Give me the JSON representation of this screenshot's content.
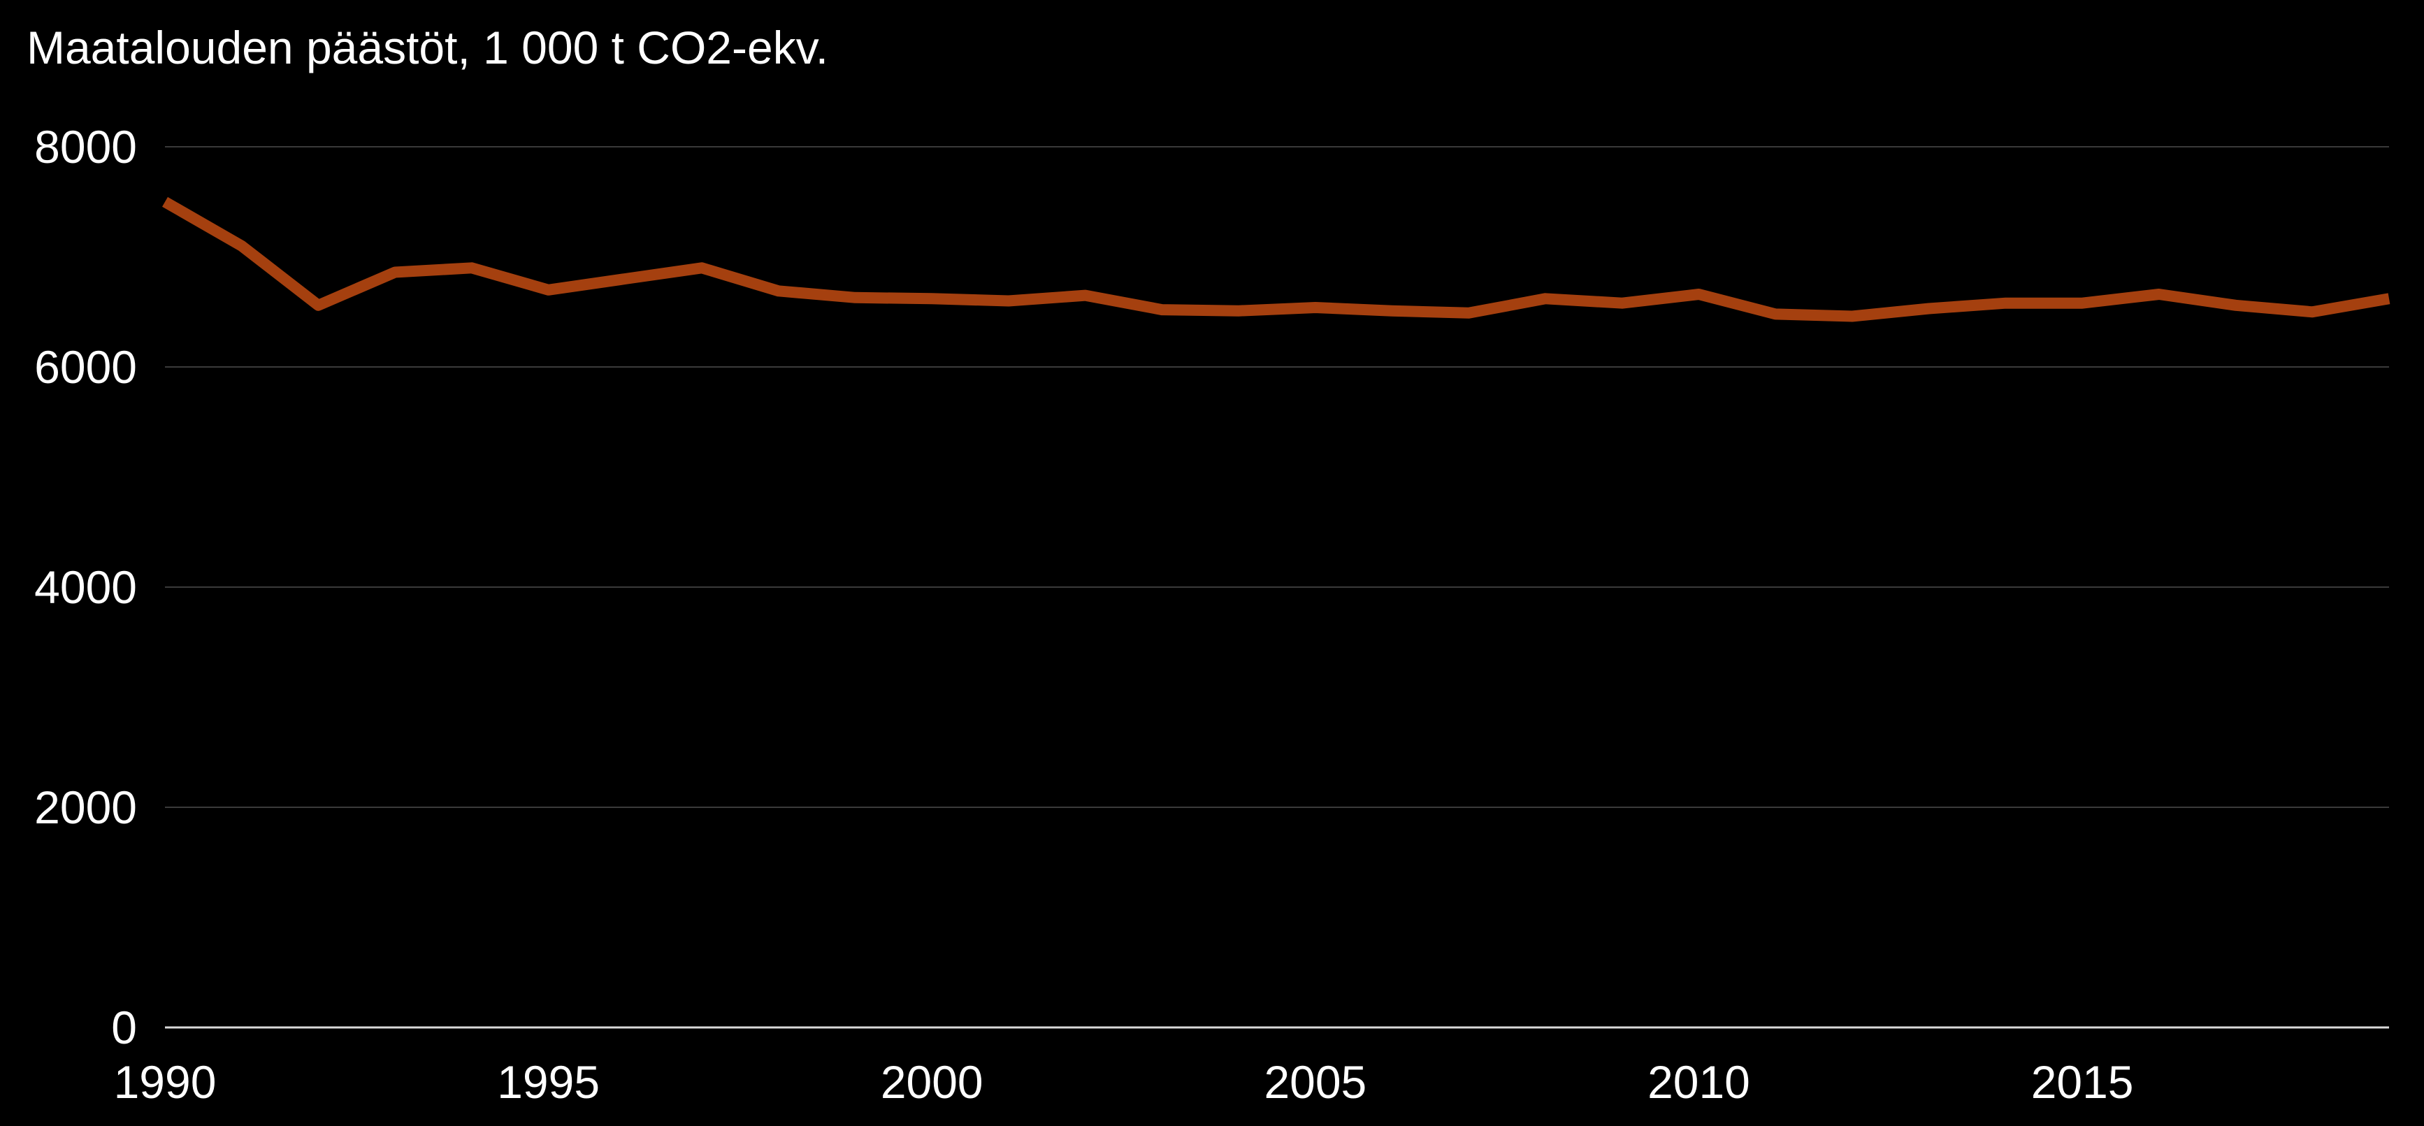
{
  "chart_data": {
    "type": "line",
    "title": "Maatalouden päästöt, 1 000 t CO2-ekv.",
    "xlabel": "",
    "ylabel": "",
    "xlim": [
      1990,
      2019
    ],
    "ylim": [
      0,
      8000
    ],
    "x_ticks": [
      "1990",
      "1995",
      "2000",
      "2005",
      "2010",
      "2015"
    ],
    "y_ticks": [
      "0",
      "2000",
      "4000",
      "6000",
      "8000"
    ],
    "grid": true,
    "legend": "none",
    "series": [
      {
        "color": "#a5400f",
        "x": [
          1990,
          1991,
          1992,
          1993,
          1994,
          1995,
          1996,
          1997,
          1998,
          1999,
          2000,
          2001,
          2002,
          2003,
          2004,
          2005,
          2006,
          2007,
          2008,
          2009,
          2010,
          2011,
          2012,
          2013,
          2014,
          2015,
          2016,
          2017,
          2018,
          2019
        ],
        "values": [
          7500,
          7100,
          6560,
          6860,
          6900,
          6700,
          6800,
          6900,
          6690,
          6630,
          6620,
          6600,
          6650,
          6520,
          6510,
          6540,
          6510,
          6490,
          6620,
          6580,
          6660,
          6480,
          6460,
          6530,
          6580,
          6580,
          6660,
          6560,
          6500,
          6620
        ]
      }
    ]
  }
}
